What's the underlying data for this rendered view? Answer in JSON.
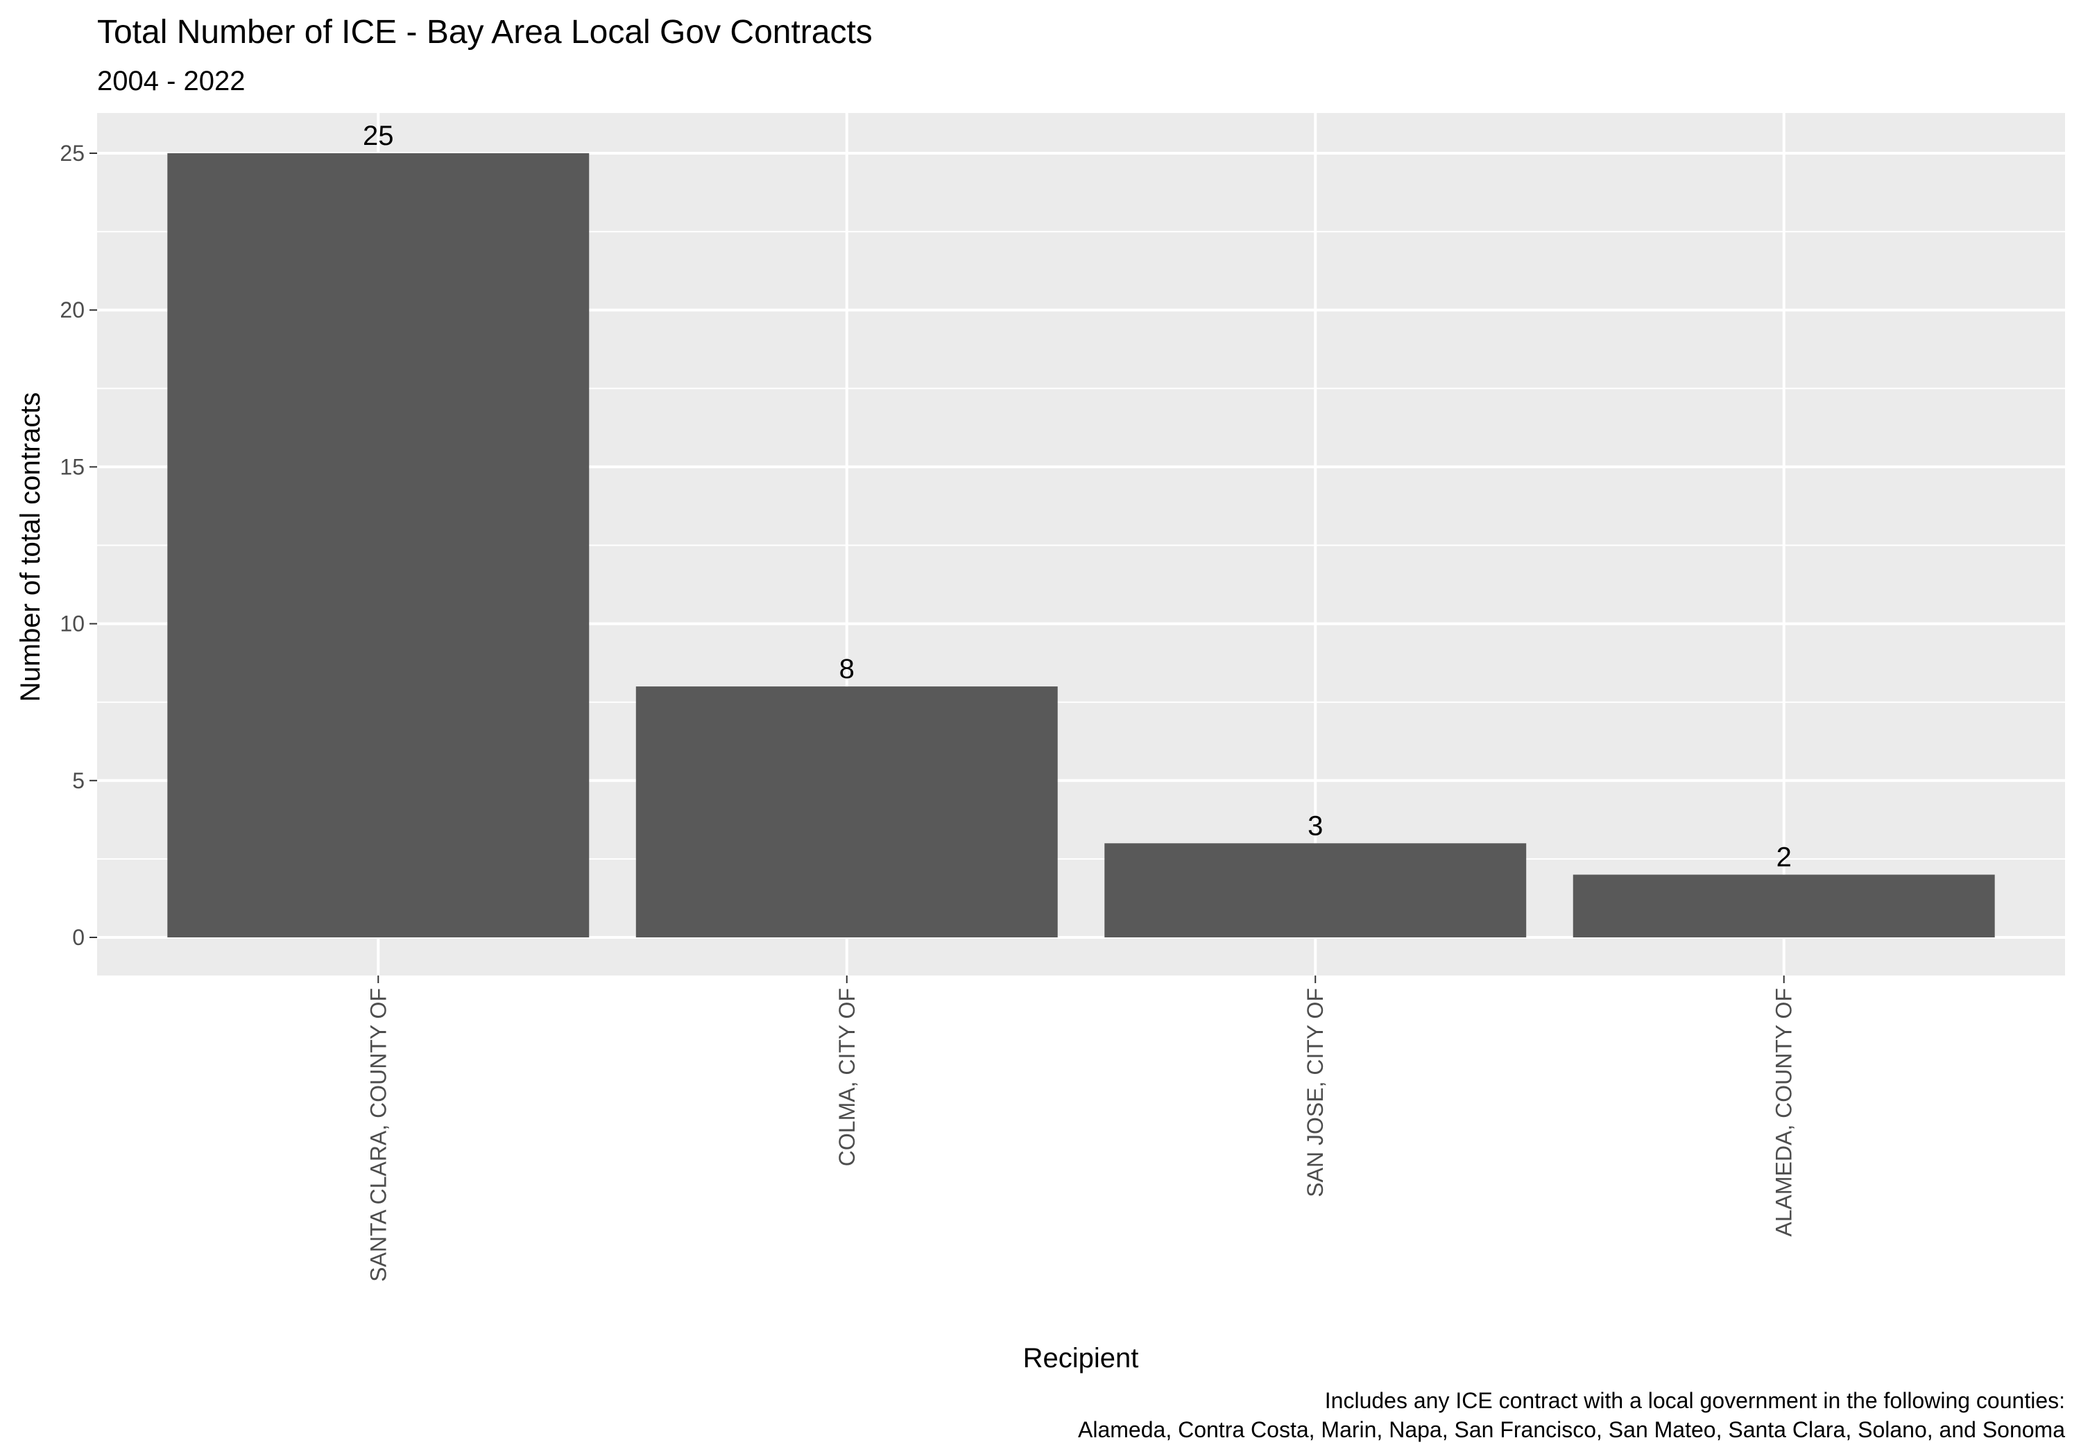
{
  "chart_data": {
    "type": "bar",
    "title": "Total Number of ICE - Bay Area Local Gov Contracts",
    "subtitle": "2004 - 2022",
    "xlabel": "Recipient",
    "ylabel": "Number of total contracts",
    "categories": [
      "SANTA CLARA, COUNTY OF",
      "COLMA, CITY OF",
      "SAN JOSE, CITY OF",
      "ALAMEDA, COUNTY OF"
    ],
    "values": [
      25,
      8,
      3,
      2
    ],
    "data_labels": [
      "25",
      "8",
      "3",
      "2"
    ],
    "ylim": [
      0,
      25
    ],
    "yticks": [
      0,
      5,
      10,
      15,
      20,
      25
    ],
    "ytick_labels": [
      "0",
      "5",
      "10",
      "15",
      "20",
      "25"
    ],
    "grid": true,
    "colors": {
      "bar": "#595959",
      "panel": "#ebebeb",
      "grid": "#ffffff"
    },
    "caption": [
      "Includes any ICE contract with a local government in the following counties:",
      "Alameda, Contra Costa, Marin, Napa, San Francisco, San Mateo, Santa Clara, Solano, and Sonoma"
    ]
  }
}
